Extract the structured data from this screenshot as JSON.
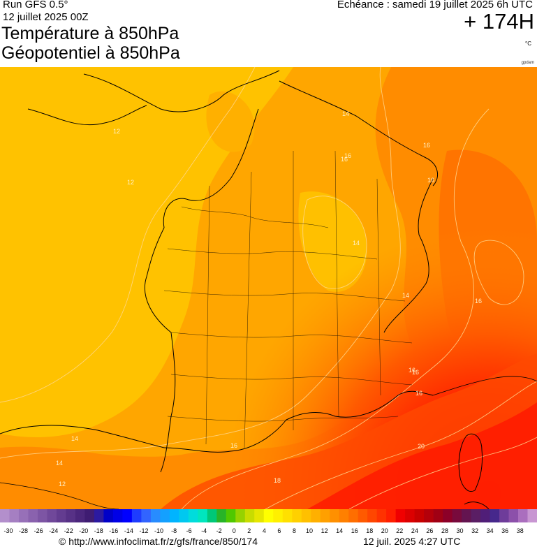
{
  "header": {
    "run": "Run GFS 0.5°",
    "run_date": "12 juillet 2025 00Z",
    "title_line1": "Température à 850hPa",
    "title_line2": "Géopotentiel à 850hPa",
    "valid_time": "Echéance : samedi 19 juillet 2025 6h UTC",
    "lead_time": "+ 174H",
    "unit": "°C",
    "credit": "gpdam"
  },
  "map": {
    "isotherm_labels": [
      "12",
      "12",
      "14",
      "16",
      "16",
      "16",
      "16",
      "16",
      "14",
      "14",
      "16",
      "16",
      "16",
      "16",
      "18",
      "20",
      "14",
      "14",
      "12"
    ],
    "colors": {
      "t10": "#ffcc00",
      "t12": "#ffb800",
      "t14": "#ffa000",
      "t16": "#ff8200",
      "t18": "#ff5a00",
      "t20": "#ff2000",
      "t22": "#ea0000",
      "border": "#000000"
    }
  },
  "scale": {
    "ticks": [
      "-30",
      "-28",
      "-26",
      "-24",
      "-22",
      "-20",
      "-18",
      "-16",
      "-14",
      "-12",
      "-10",
      "-8",
      "-6",
      "-4",
      "-2",
      "0",
      "2",
      "4",
      "6",
      "8",
      "10",
      "12",
      "14",
      "16",
      "18",
      "20",
      "22",
      "24",
      "26",
      "28",
      "30",
      "32",
      "34",
      "36",
      "38"
    ],
    "colors": [
      "#b38fcc",
      "#a57fc2",
      "#9770b8",
      "#8a62ae",
      "#7d55a4",
      "#70489a",
      "#633c90",
      "#573186",
      "#4b267c",
      "#3f1c72",
      "#2c1aa0",
      "#0000c8",
      "#0000e6",
      "#0000ff",
      "#1e3cff",
      "#3264ff",
      "#288cff",
      "#14a0ff",
      "#00b4ff",
      "#00c8f0",
      "#00dcdc",
      "#00e6be",
      "#00c878",
      "#28b428",
      "#50c800",
      "#96d200",
      "#c8dc00",
      "#e6e600",
      "#ffff00",
      "#fff000",
      "#ffe000",
      "#ffd000",
      "#ffc000",
      "#ffb000",
      "#ffa000",
      "#ff9000",
      "#ff8000",
      "#ff6e00",
      "#ff5a00",
      "#ff4600",
      "#ff3200",
      "#ff1e00",
      "#f00000",
      "#dc0000",
      "#c80000",
      "#b4000a",
      "#a00014",
      "#8c0028",
      "#780a3c",
      "#641450",
      "#5a1e64",
      "#501e78",
      "#46288c",
      "#6e3c9a",
      "#8c50aa",
      "#aa6ebe",
      "#c896d2"
    ]
  },
  "footer": {
    "url": "© http://www.infoclimat.fr/z/gfs/france/850/174",
    "timestamp": "12 juil. 2025  4:27 UTC"
  }
}
